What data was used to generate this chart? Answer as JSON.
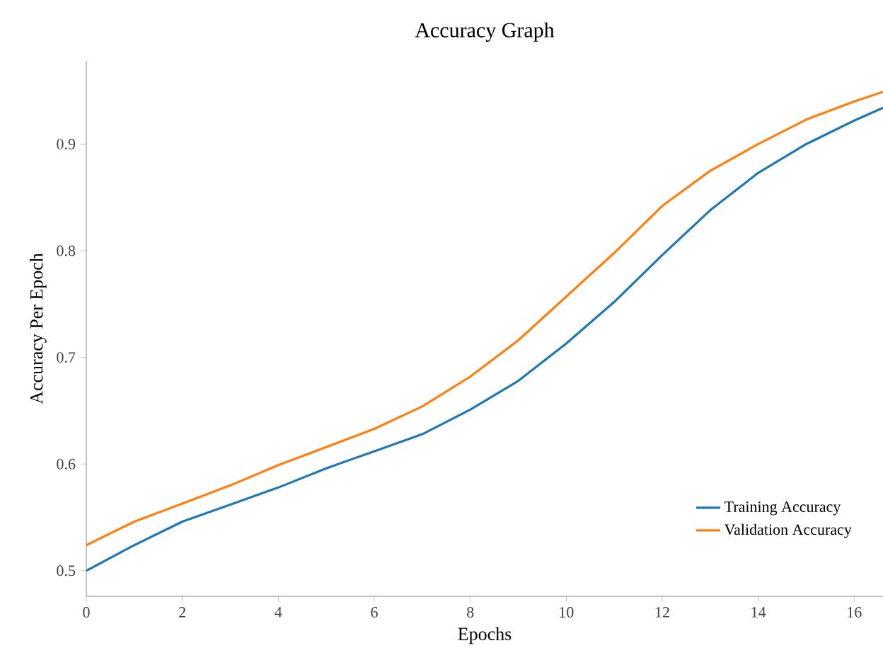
{
  "chart_data": {
    "type": "line",
    "title": "Accuracy Graph",
    "xlabel": "Epochs",
    "ylabel": "Accuracy Per Epoch",
    "x": [
      0,
      1,
      2,
      3,
      4,
      5,
      6,
      7,
      8,
      9,
      10,
      11,
      12,
      13,
      14,
      15,
      16,
      16.6
    ],
    "series": [
      {
        "name": "Training Accuracy",
        "color": "#1f77b4",
        "values": [
          0.5,
          0.524,
          0.546,
          0.562,
          0.578,
          0.596,
          0.612,
          0.628,
          0.651,
          0.678,
          0.713,
          0.752,
          0.796,
          0.838,
          0.873,
          0.9,
          0.922,
          0.934
        ]
      },
      {
        "name": "Validation Accuracy",
        "color": "#ff7f0e",
        "values": [
          0.524,
          0.546,
          0.563,
          0.58,
          0.599,
          0.616,
          0.633,
          0.654,
          0.682,
          0.716,
          0.757,
          0.798,
          0.842,
          0.875,
          0.9,
          0.923,
          0.94,
          0.949
        ]
      }
    ],
    "xlim": [
      0,
      16.6
    ],
    "ylim": [
      0.476,
      0.978
    ],
    "xticks": [
      0,
      2,
      4,
      6,
      8,
      10,
      12,
      14,
      16
    ],
    "yticks": [
      0.5,
      0.6,
      0.7,
      0.8,
      0.9
    ],
    "grid": false,
    "legend": "bottom right",
    "marker": "none",
    "line_style": "solid"
  }
}
